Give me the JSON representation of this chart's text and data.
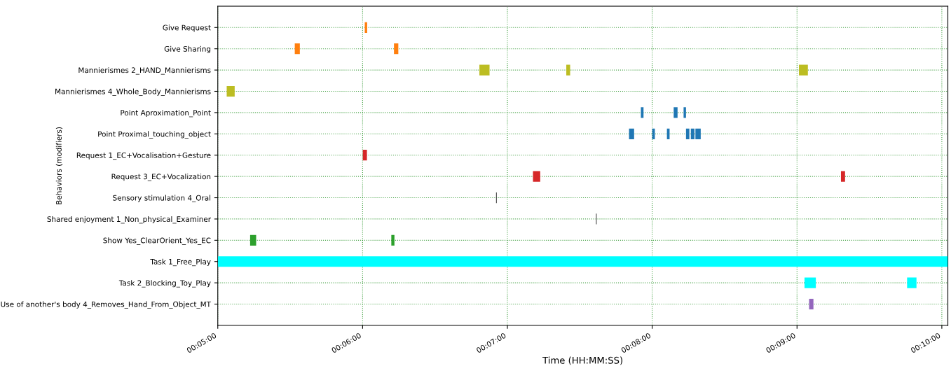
{
  "chart_data": {
    "type": "bar",
    "orientation": "horizontal",
    "xlabel": "Time (HH:MM:SS)",
    "ylabel": "Behaviors (modifiers)",
    "categories": [
      "Give Request",
      "Give Sharing",
      "Mannierismes 2_HAND_Mannierisms",
      "Mannierismes 4_Whole_Body_Mannierisms",
      "Point Aproximation_Point",
      "Point Proximal_touching_object",
      "Request 1_EC+Vocalisation+Gesture",
      "Request 3_EC+Vocalization",
      "Sensory stimulation 4_Oral",
      "Shared enjoyment 1_Non_physical_Examiner",
      "Show Yes_ClearOrient_Yes_EC",
      "Task 1_Free_Play",
      "Task 2_Blocking_Toy_Play",
      "Use of another's body 4_Removes_Hand_From_Object_MT"
    ],
    "series": [
      {
        "values": [
          1.0,
          2.1,
          4.2,
          3.3,
          1.1,
          2.1,
          1.7,
          3.0,
          0.3,
          0.3,
          2.5,
          302.5,
          4.7,
          1.8
        ],
        "base": [
          360.9,
          331.9,
          408.4,
          303.7,
          475.3,
          470.4,
          360.1,
          430.6,
          415.3,
          456.7,
          313.4,
          300,
          543.1,
          545.0
        ],
        "colors": [
          "#ff7f0e",
          "#ff7f0e",
          "#bcbd22",
          "#bcbd22",
          "#1f77b4",
          "#1f77b4",
          "#d62728",
          "#d62728",
          "#404040",
          "#404040",
          "#2ca02c",
          "#00ffff",
          "#00ffff",
          "#9467bd"
        ]
      },
      {
        "values": [
          null,
          1.8,
          1.6,
          null,
          1.6,
          1.1,
          null,
          1.7,
          null,
          null,
          1.3,
          null,
          3.9,
          null
        ],
        "base": [
          null,
          373.0,
          444.4,
          null,
          488.9,
          480.0,
          null,
          558.2,
          null,
          null,
          371.9,
          null,
          585.6,
          null
        ],
        "colors": [
          null,
          "#ff7f0e",
          "#bcbd22",
          null,
          "#1f77b4",
          "#1f77b4",
          null,
          "#d62728",
          null,
          null,
          "#2ca02c",
          null,
          "#00ffff",
          null
        ]
      },
      {
        "values": [
          null,
          null,
          3.7,
          null,
          1.0,
          1.1,
          null,
          null,
          null,
          null,
          null,
          null,
          null,
          null
        ],
        "base": [
          null,
          null,
          540.8,
          null,
          493.0,
          486.1,
          null,
          null,
          null,
          null,
          null,
          null,
          null,
          null
        ],
        "colors": [
          null,
          null,
          "#bcbd22",
          null,
          "#1f77b4",
          "#1f77b4",
          null,
          null,
          null,
          null,
          null,
          null,
          null,
          null
        ]
      },
      {
        "color": "#1f77b4",
        "values": [
          null,
          null,
          null,
          null,
          null,
          1.4,
          null,
          null,
          null,
          null,
          null,
          null,
          null,
          null
        ],
        "base": [
          null,
          null,
          null,
          null,
          null,
          494.0,
          null,
          null,
          null,
          null,
          null,
          null,
          null,
          null
        ]
      },
      {
        "color": "#1f77b4",
        "values": [
          null,
          null,
          null,
          null,
          null,
          1.5,
          null,
          null,
          null,
          null,
          null,
          null,
          null,
          null
        ],
        "base": [
          null,
          null,
          null,
          null,
          null,
          496.0,
          null,
          null,
          null,
          null,
          null,
          null,
          null,
          null
        ]
      },
      {
        "color": "#1f77b4",
        "values": [
          null,
          null,
          null,
          null,
          null,
          2.2,
          null,
          null,
          null,
          null,
          null,
          null,
          null,
          null
        ],
        "base": [
          null,
          null,
          null,
          null,
          null,
          497.9,
          null,
          null,
          null,
          null,
          null,
          null,
          null,
          null
        ]
      }
    ],
    "xlim": [
      300,
      602.5
    ],
    "xticks": [
      {
        "value": 300,
        "label": "00:05:00"
      },
      {
        "value": 360,
        "label": "00:06:00"
      },
      {
        "value": 420,
        "label": "00:07:00"
      },
      {
        "value": 480,
        "label": "00:08:00"
      },
      {
        "value": 540,
        "label": "00:09:00"
      },
      {
        "value": 600,
        "label": "00:10:00"
      }
    ],
    "grid": true
  }
}
